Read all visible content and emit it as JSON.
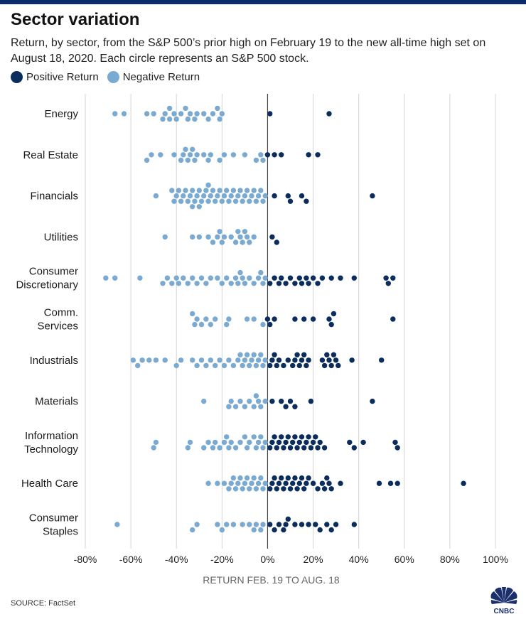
{
  "header": {
    "title": "Sector variation",
    "subtitle": "Return, by sector, from the S&P 500’s prior high on February 19 to the new all-time high set on August 18, 2020. Each circle represents an S&P 500 stock."
  },
  "legend": [
    {
      "label": "Positive Return",
      "color": "#0b2d5e"
    },
    {
      "label": "Negative Return",
      "color": "#7aaad2"
    }
  ],
  "footer": {
    "source": "SOURCE: FactSet",
    "logo_text": "CNBC"
  },
  "chart_data": {
    "type": "scatter",
    "subtype": "beeswarm",
    "title": "Sector variation",
    "xlabel": "RETURN FEB. 19 TO AUG. 18",
    "xlim": [
      -80,
      100
    ],
    "x_ticks": [
      -80,
      -60,
      -40,
      -20,
      0,
      20,
      40,
      60,
      80,
      100
    ],
    "x_tick_labels": [
      "-80%",
      "-60%",
      "-40%",
      "-20%",
      "0%",
      "20%",
      "40%",
      "60%",
      "80%",
      "100%"
    ],
    "grid": "vertical",
    "zero_line": true,
    "legend_position": "top-left",
    "colors": {
      "positive": "#0b2d5e",
      "negative": "#7aaad2"
    },
    "categories": [
      {
        "label": [
          "Energy"
        ],
        "values": [
          -67,
          -63,
          -53,
          -50,
          -46,
          -45,
          -43,
          -43,
          -41,
          -40,
          -38,
          -36,
          -35,
          -34,
          -32,
          -31,
          -28,
          -26,
          -24,
          -22,
          -21,
          -20,
          1,
          27
        ]
      },
      {
        "label": [
          "Real Estate"
        ],
        "values": [
          -53,
          -51,
          -47,
          -41,
          -38,
          -37,
          -36,
          -35,
          -34,
          -33,
          -32,
          -31,
          -28,
          -26,
          -25,
          -21,
          -19,
          -15,
          -10,
          -5,
          -3,
          -2,
          0,
          3,
          6,
          18,
          22
        ]
      },
      {
        "label": [
          "Financials"
        ],
        "values": [
          -49,
          -42,
          -41,
          -40,
          -39,
          -38,
          -37,
          -36,
          -35,
          -34,
          -33,
          -33,
          -32,
          -31,
          -30,
          -30,
          -29,
          -28,
          -27,
          -26,
          -26,
          -25,
          -24,
          -23,
          -22,
          -21,
          -20,
          -19,
          -18,
          -17,
          -16,
          -15,
          -14,
          -13,
          -12,
          -11,
          -10,
          -9,
          -8,
          -7,
          -6,
          -5,
          -4,
          -3,
          -2,
          -1,
          3,
          9,
          10,
          15,
          17,
          46
        ]
      },
      {
        "label": [
          "Utilities"
        ],
        "values": [
          -45,
          -33,
          -30,
          -26,
          -24,
          -22,
          -21,
          -20,
          -19,
          -16,
          -14,
          -13,
          -12,
          -11,
          -10,
          -9,
          -8,
          -6,
          2,
          4
        ]
      },
      {
        "label": [
          "Consumer",
          "Discretionary"
        ],
        "values": [
          -71,
          -67,
          -56,
          -46,
          -44,
          -42,
          -40,
          -39,
          -37,
          -35,
          -33,
          -31,
          -29,
          -27,
          -25,
          -22,
          -20,
          -18,
          -16,
          -14,
          -13,
          -12,
          -11,
          -10,
          -8,
          -6,
          -4,
          -3,
          -2,
          -1,
          1,
          3,
          5,
          6,
          8,
          10,
          12,
          14,
          15,
          17,
          18,
          20,
          22,
          24,
          28,
          32,
          38,
          52,
          53,
          55
        ]
      },
      {
        "label": [
          "Comm.",
          "Services"
        ],
        "values": [
          -33,
          -32,
          -31,
          -29,
          -27,
          -25,
          -23,
          -18,
          -17,
          -9,
          -6,
          -2,
          0,
          1,
          3,
          12,
          16,
          20,
          27,
          28,
          29,
          55
        ]
      },
      {
        "label": [
          "Industrials"
        ],
        "values": [
          -59,
          -57,
          -55,
          -52,
          -49,
          -45,
          -40,
          -38,
          -33,
          -31,
          -29,
          -27,
          -25,
          -23,
          -21,
          -19,
          -17,
          -15,
          -13,
          -12,
          -11,
          -10,
          -9,
          -8,
          -7,
          -6,
          -5,
          -4,
          -3,
          -2,
          -1,
          1,
          2,
          3,
          4,
          5,
          7,
          9,
          11,
          12,
          13,
          14,
          15,
          16,
          17,
          18,
          24,
          25,
          26,
          27,
          28,
          29,
          30,
          31,
          37,
          50
        ]
      },
      {
        "label": [
          "Materials"
        ],
        "values": [
          -28,
          -17,
          -16,
          -14,
          -12,
          -10,
          -8,
          -6,
          -5,
          -4,
          -3,
          -1,
          2,
          6,
          8,
          10,
          12,
          19,
          46
        ]
      },
      {
        "label": [
          "Information",
          "Technology"
        ],
        "values": [
          -50,
          -49,
          -35,
          -34,
          -28,
          -26,
          -24,
          -23,
          -21,
          -19,
          -18,
          -17,
          -16,
          -14,
          -12,
          -10,
          -9,
          -8,
          -6,
          -5,
          -4,
          -3,
          -2,
          -1,
          1,
          2,
          3,
          4,
          5,
          6,
          7,
          8,
          9,
          10,
          11,
          12,
          13,
          14,
          15,
          16,
          17,
          18,
          19,
          20,
          21,
          22,
          23,
          25,
          36,
          38,
          42,
          56,
          57
        ]
      },
      {
        "label": [
          "Health Care"
        ],
        "values": [
          -26,
          -22,
          -19,
          -17,
          -16,
          -15,
          -14,
          -13,
          -12,
          -11,
          -10,
          -9,
          -8,
          -7,
          -6,
          -5,
          -4,
          -3,
          -2,
          -1,
          1,
          2,
          3,
          4,
          5,
          6,
          7,
          8,
          9,
          10,
          11,
          12,
          13,
          14,
          15,
          16,
          17,
          18,
          20,
          22,
          24,
          25,
          26,
          27,
          28,
          32,
          49,
          54,
          57,
          86
        ]
      },
      {
        "label": [
          "Consumer",
          "Staples"
        ],
        "values": [
          -66,
          -33,
          -31,
          -22,
          -20,
          -18,
          -15,
          -11,
          -8,
          -6,
          -5,
          -3,
          -2,
          1,
          3,
          5,
          7,
          8,
          9,
          12,
          15,
          18,
          21,
          23,
          26,
          28,
          30,
          38
        ]
      }
    ]
  }
}
